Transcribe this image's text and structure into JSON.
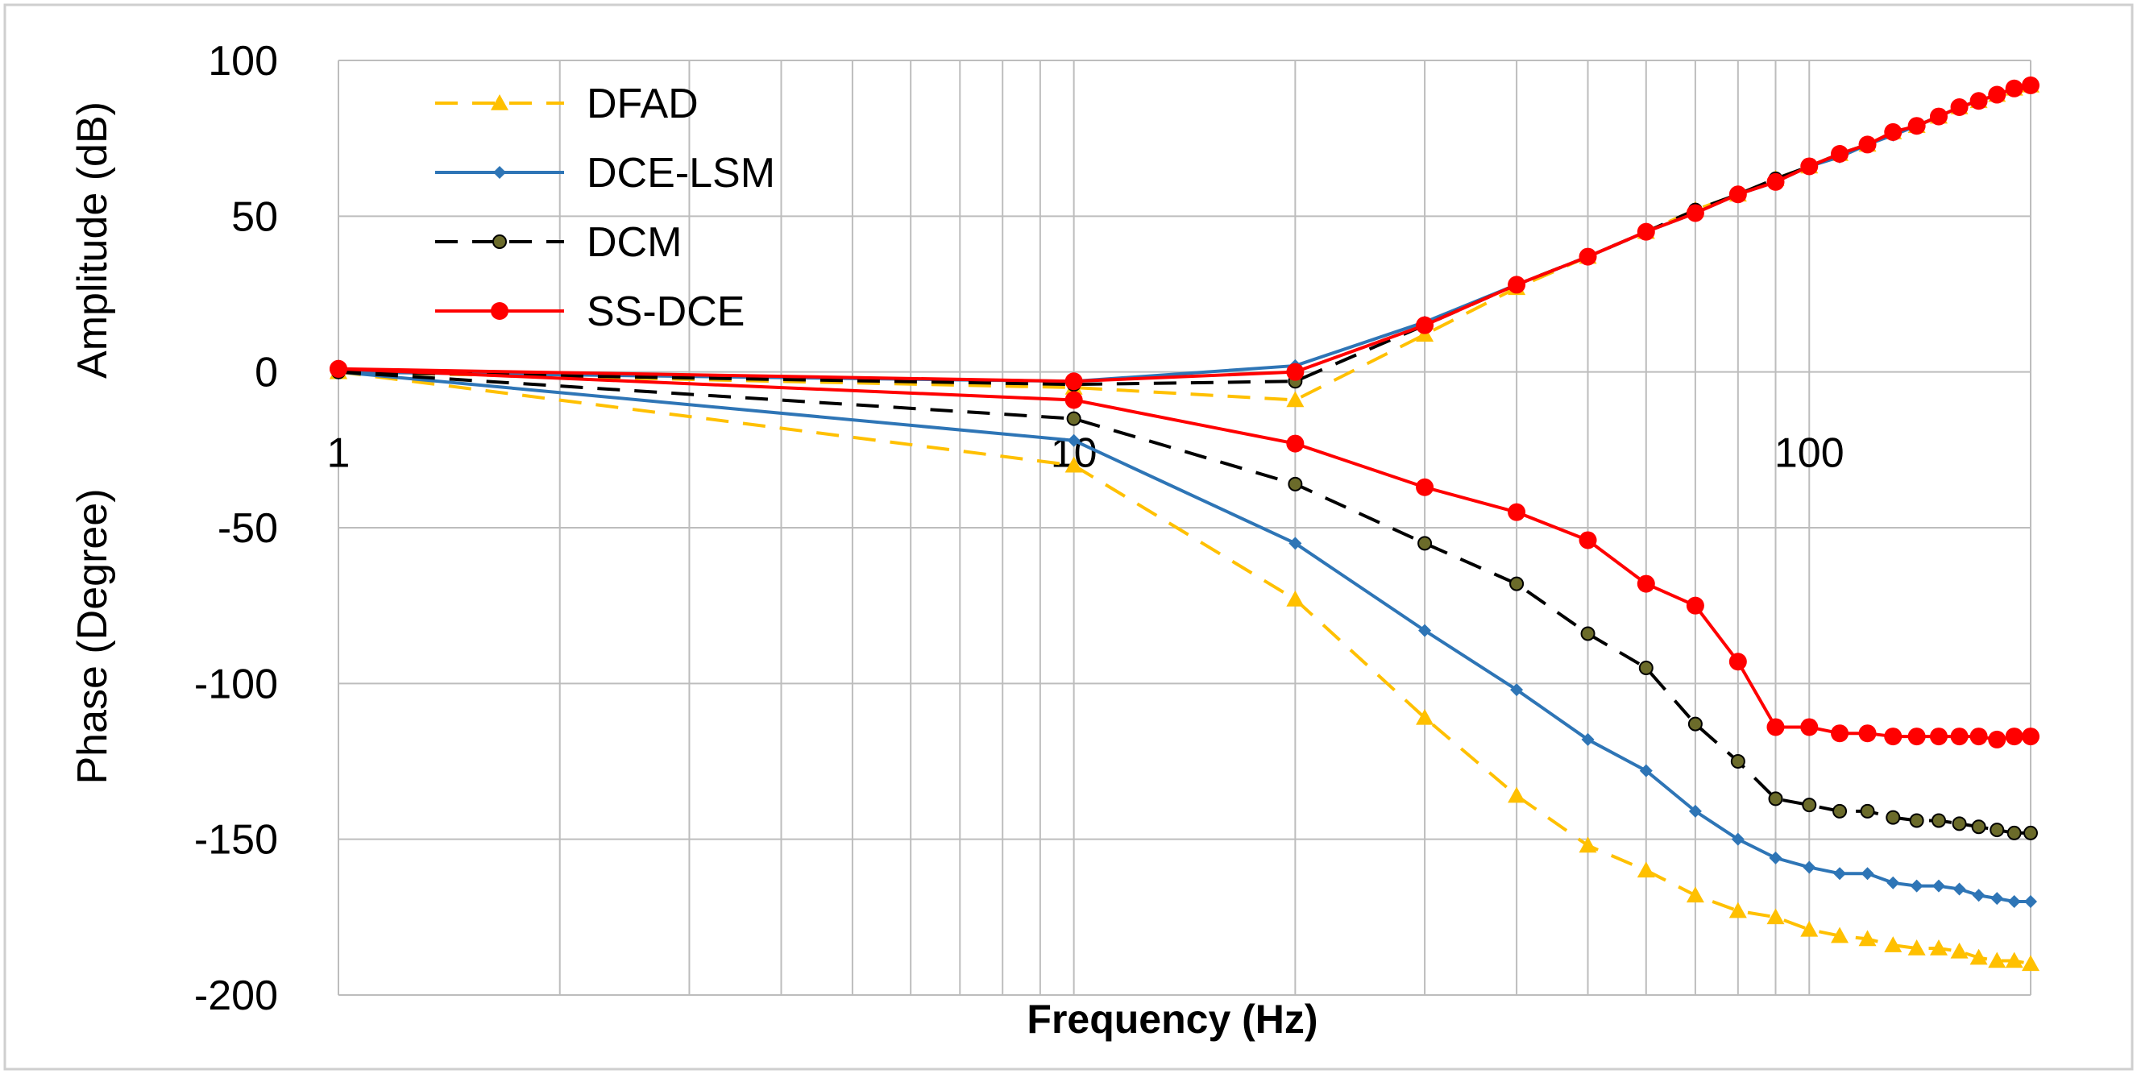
{
  "chart_data": {
    "type": "line",
    "xscale": "log",
    "xlim": [
      1,
      200
    ],
    "ylim": [
      -200,
      100
    ],
    "xlabel": "Frequency (Hz)",
    "ylabel_amplitude": "Amplitude (dB)",
    "ylabel_phase": "Phase (Degree)",
    "x_tick_labels": [
      {
        "value": 1,
        "label": "1"
      },
      {
        "value": 10,
        "label": "10"
      },
      {
        "value": 100,
        "label": "100"
      }
    ],
    "y_ticks": [
      100,
      50,
      0,
      -50,
      -100,
      -150,
      -200
    ],
    "grid": true,
    "legend_position": "top-left",
    "series": [
      {
        "name": "DFAD",
        "color": "#FFC000",
        "dash": "dashed",
        "marker": "triangle",
        "amplitude": [
          [
            1,
            0
          ],
          [
            10,
            -5
          ],
          [
            20,
            -9
          ],
          [
            30,
            12
          ],
          [
            40,
            27
          ],
          [
            50,
            37
          ],
          [
            60,
            45
          ],
          [
            70,
            52
          ],
          [
            80,
            57
          ],
          [
            90,
            62
          ],
          [
            100,
            66
          ],
          [
            110,
            70
          ],
          [
            120,
            73
          ],
          [
            130,
            77
          ],
          [
            140,
            79
          ],
          [
            150,
            82
          ],
          [
            160,
            85
          ],
          [
            170,
            87
          ],
          [
            180,
            89
          ],
          [
            190,
            91
          ],
          [
            200,
            92
          ]
        ],
        "phase": [
          [
            1,
            0
          ],
          [
            10,
            -30
          ],
          [
            20,
            -73
          ],
          [
            30,
            -111
          ],
          [
            40,
            -136
          ],
          [
            50,
            -152
          ],
          [
            60,
            -160
          ],
          [
            70,
            -168
          ],
          [
            80,
            -173
          ],
          [
            90,
            -175
          ],
          [
            100,
            -179
          ],
          [
            110,
            -181
          ],
          [
            120,
            -182
          ],
          [
            130,
            -184
          ],
          [
            140,
            -185
          ],
          [
            150,
            -185
          ],
          [
            160,
            -186
          ],
          [
            170,
            -188
          ],
          [
            180,
            -189
          ],
          [
            190,
            -189
          ],
          [
            200,
            -190
          ]
        ]
      },
      {
        "name": "DCE-LSM",
        "color": "#2E75B6",
        "dash": "solid",
        "marker": "diamond",
        "amplitude": [
          [
            1,
            0
          ],
          [
            10,
            -3
          ],
          [
            20,
            2
          ],
          [
            30,
            16
          ],
          [
            40,
            28
          ],
          [
            50,
            37
          ],
          [
            60,
            45
          ],
          [
            70,
            51
          ],
          [
            80,
            57
          ],
          [
            90,
            61
          ],
          [
            100,
            66
          ],
          [
            110,
            69
          ],
          [
            120,
            73
          ],
          [
            130,
            76
          ],
          [
            140,
            79
          ],
          [
            150,
            82
          ],
          [
            160,
            85
          ],
          [
            170,
            87
          ],
          [
            180,
            89
          ],
          [
            190,
            91
          ],
          [
            200,
            92
          ]
        ],
        "phase": [
          [
            1,
            0
          ],
          [
            10,
            -22
          ],
          [
            20,
            -55
          ],
          [
            30,
            -83
          ],
          [
            40,
            -102
          ],
          [
            50,
            -118
          ],
          [
            60,
            -128
          ],
          [
            70,
            -141
          ],
          [
            80,
            -150
          ],
          [
            90,
            -156
          ],
          [
            100,
            -159
          ],
          [
            110,
            -161
          ],
          [
            120,
            -161
          ],
          [
            130,
            -164
          ],
          [
            140,
            -165
          ],
          [
            150,
            -165
          ],
          [
            160,
            -166
          ],
          [
            170,
            -168
          ],
          [
            180,
            -169
          ],
          [
            190,
            -170
          ],
          [
            200,
            -170
          ]
        ]
      },
      {
        "name": "DCM",
        "color": "#000000",
        "dash": "dashed",
        "marker": "circle-small",
        "amplitude": [
          [
            1,
            0
          ],
          [
            10,
            -4
          ],
          [
            20,
            -3
          ],
          [
            30,
            15
          ],
          [
            40,
            28
          ],
          [
            50,
            37
          ],
          [
            60,
            45
          ],
          [
            70,
            52
          ],
          [
            80,
            57
          ],
          [
            90,
            62
          ],
          [
            100,
            66
          ],
          [
            110,
            70
          ],
          [
            120,
            73
          ],
          [
            130,
            77
          ],
          [
            140,
            79
          ],
          [
            150,
            82
          ],
          [
            160,
            85
          ],
          [
            170,
            87
          ],
          [
            180,
            89
          ],
          [
            190,
            91
          ],
          [
            200,
            92
          ]
        ],
        "phase": [
          [
            1,
            0
          ],
          [
            10,
            -15
          ],
          [
            20,
            -36
          ],
          [
            30,
            -55
          ],
          [
            40,
            -68
          ],
          [
            50,
            -84
          ],
          [
            60,
            -95
          ],
          [
            70,
            -113
          ],
          [
            80,
            -125
          ],
          [
            90,
            -137
          ],
          [
            100,
            -139
          ],
          [
            110,
            -141
          ],
          [
            120,
            -141
          ],
          [
            130,
            -143
          ],
          [
            140,
            -144
          ],
          [
            150,
            -144
          ],
          [
            160,
            -145
          ],
          [
            170,
            -146
          ],
          [
            180,
            -147
          ],
          [
            190,
            -148
          ],
          [
            200,
            -148
          ]
        ]
      },
      {
        "name": "SS-DCE",
        "color": "#FF0000",
        "dash": "solid",
        "marker": "circle",
        "amplitude": [
          [
            1,
            1
          ],
          [
            10,
            -3
          ],
          [
            20,
            0
          ],
          [
            30,
            15
          ],
          [
            40,
            28
          ],
          [
            50,
            37
          ],
          [
            60,
            45
          ],
          [
            70,
            51
          ],
          [
            80,
            57
          ],
          [
            90,
            61
          ],
          [
            100,
            66
          ],
          [
            110,
            70
          ],
          [
            120,
            73
          ],
          [
            130,
            77
          ],
          [
            140,
            79
          ],
          [
            150,
            82
          ],
          [
            160,
            85
          ],
          [
            170,
            87
          ],
          [
            180,
            89
          ],
          [
            190,
            91
          ],
          [
            200,
            92
          ]
        ],
        "phase": [
          [
            1,
            1
          ],
          [
            10,
            -9
          ],
          [
            20,
            -23
          ],
          [
            30,
            -37
          ],
          [
            40,
            -45
          ],
          [
            50,
            -54
          ],
          [
            60,
            -68
          ],
          [
            70,
            -75
          ],
          [
            80,
            -93
          ],
          [
            90,
            -114
          ],
          [
            100,
            -114
          ],
          [
            110,
            -116
          ],
          [
            120,
            -116
          ],
          [
            130,
            -117
          ],
          [
            140,
            -117
          ],
          [
            150,
            -117
          ],
          [
            160,
            -117
          ],
          [
            170,
            -117
          ],
          [
            180,
            -118
          ],
          [
            190,
            -117
          ],
          [
            200,
            -117
          ]
        ]
      }
    ]
  }
}
